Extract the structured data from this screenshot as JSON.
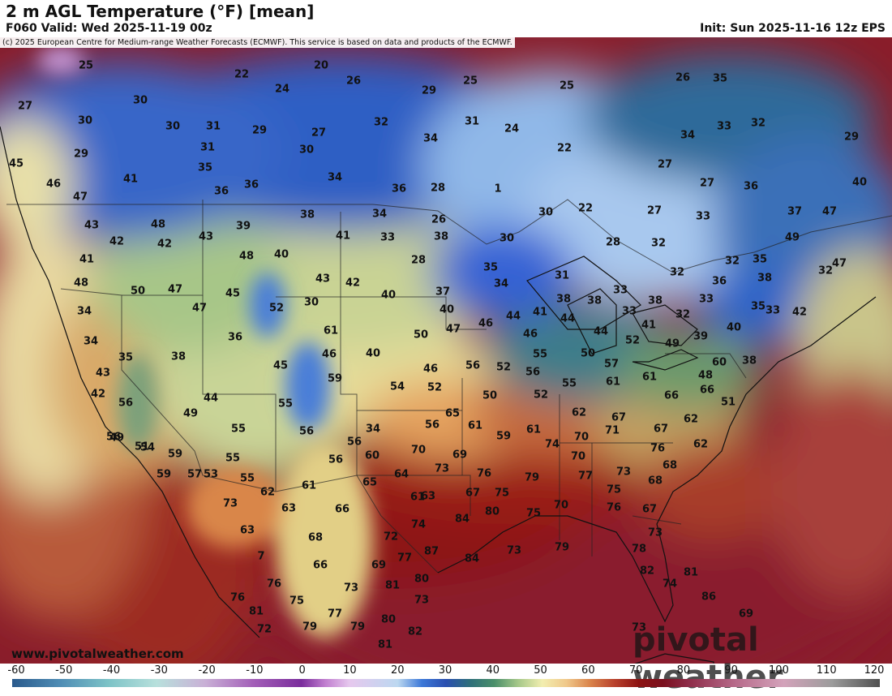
{
  "header": {
    "title": "2 m AGL Temperature (°F) [mean]",
    "valid": "F060 Valid: Wed 2025-11-19 00z",
    "init": "Init: Sun 2025-11-16 12z EPS"
  },
  "copyright": "(c) 2025 European Centre for Medium-range Weather Forecasts (ECMWF). This service is based on data and products of the ECMWF.",
  "website": "www.pivotalweather.com",
  "brand": "pivotal weather",
  "colorbar": {
    "ticks": [
      "-60",
      "-50",
      "-40",
      "-30",
      "-20",
      "-10",
      "0",
      "10",
      "20",
      "30",
      "40",
      "50",
      "60",
      "70",
      "80",
      "90",
      "100",
      "110",
      "120"
    ],
    "stops": [
      {
        "v": -60,
        "c": "#2a5a8c"
      },
      {
        "v": -50,
        "c": "#4f8db5"
      },
      {
        "v": -40,
        "c": "#7dc3c7"
      },
      {
        "v": -30,
        "c": "#b8e0dc"
      },
      {
        "v": -20,
        "c": "#c9b0d6"
      },
      {
        "v": -10,
        "c": "#a35fb8"
      },
      {
        "v": 0,
        "c": "#7a2d9c"
      },
      {
        "v": 5,
        "c": "#c17fd0"
      },
      {
        "v": 10,
        "c": "#e6c8ee"
      },
      {
        "v": 20,
        "c": "#bcd8f0"
      },
      {
        "v": 25,
        "c": "#3c78d8"
      },
      {
        "v": 30,
        "c": "#2a4fb0"
      },
      {
        "v": 35,
        "c": "#2e6f7a"
      },
      {
        "v": 40,
        "c": "#4a8f6a"
      },
      {
        "v": 45,
        "c": "#a6c889"
      },
      {
        "v": 50,
        "c": "#f2eeb0"
      },
      {
        "v": 55,
        "c": "#f0c88a"
      },
      {
        "v": 60,
        "c": "#d9824a"
      },
      {
        "v": 65,
        "c": "#b8412c"
      },
      {
        "v": 70,
        "c": "#8c1212"
      },
      {
        "v": 75,
        "c": "#7a0f1e"
      },
      {
        "v": 80,
        "c": "#8c2a46"
      },
      {
        "v": 90,
        "c": "#b76a8a"
      },
      {
        "v": 100,
        "c": "#d3a2ba"
      },
      {
        "v": 110,
        "c": "#9c9c9c"
      },
      {
        "v": 120,
        "c": "#505050"
      }
    ]
  },
  "temps": [
    {
      "t": "25"
    },
    {
      "t": "20"
    },
    {
      "t": "22"
    },
    {
      "t": "26"
    },
    {
      "t": "24"
    },
    {
      "t": "25"
    },
    {
      "t": "25"
    },
    {
      "t": "26"
    },
    {
      "t": "35"
    },
    {
      "t": "27"
    },
    {
      "t": "30"
    },
    {
      "t": "29"
    },
    {
      "t": "32"
    },
    {
      "t": "31"
    },
    {
      "t": "24"
    },
    {
      "t": "33"
    },
    {
      "t": "32"
    },
    {
      "t": "30"
    },
    {
      "t": "30"
    },
    {
      "t": "31"
    },
    {
      "t": "29"
    },
    {
      "t": "27"
    },
    {
      "t": "34"
    },
    {
      "t": "34"
    },
    {
      "t": "29"
    },
    {
      "t": "29"
    },
    {
      "t": "31"
    },
    {
      "t": "30"
    },
    {
      "t": "22"
    },
    {
      "t": "27"
    },
    {
      "t": "45"
    },
    {
      "t": "35"
    },
    {
      "t": "34"
    },
    {
      "t": "36"
    },
    {
      "t": "36"
    },
    {
      "t": "28"
    },
    {
      "t": "1"
    },
    {
      "t": "27"
    },
    {
      "t": "36"
    },
    {
      "t": "40"
    },
    {
      "t": "41"
    },
    {
      "t": "36"
    },
    {
      "t": "46"
    },
    {
      "t": "47"
    },
    {
      "t": "43"
    },
    {
      "t": "48"
    },
    {
      "t": "39"
    },
    {
      "t": "38"
    },
    {
      "t": "34"
    },
    {
      "t": "26"
    },
    {
      "t": "30"
    },
    {
      "t": "22"
    },
    {
      "t": "27"
    },
    {
      "t": "33"
    },
    {
      "t": "37"
    },
    {
      "t": "47"
    },
    {
      "t": "42"
    },
    {
      "t": "42"
    },
    {
      "t": "43"
    },
    {
      "t": "41"
    },
    {
      "t": "33"
    },
    {
      "t": "38"
    },
    {
      "t": "30"
    },
    {
      "t": "28"
    },
    {
      "t": "32"
    },
    {
      "t": "49"
    },
    {
      "t": "41"
    },
    {
      "t": "48"
    },
    {
      "t": "40"
    },
    {
      "t": "28"
    },
    {
      "t": "32"
    },
    {
      "t": "35"
    },
    {
      "t": "47"
    },
    {
      "t": "48"
    },
    {
      "t": "50"
    },
    {
      "t": "47"
    },
    {
      "t": "45"
    },
    {
      "t": "43"
    },
    {
      "t": "42"
    },
    {
      "t": "40"
    },
    {
      "t": "37"
    },
    {
      "t": "35"
    },
    {
      "t": "34"
    },
    {
      "t": "31"
    },
    {
      "t": "33"
    },
    {
      "t": "32"
    },
    {
      "t": "36"
    },
    {
      "t": "32"
    },
    {
      "t": "34"
    },
    {
      "t": "47"
    },
    {
      "t": "52"
    },
    {
      "t": "30"
    },
    {
      "t": "40"
    },
    {
      "t": "44"
    },
    {
      "t": "41"
    },
    {
      "t": "38"
    },
    {
      "t": "38"
    },
    {
      "t": "33"
    },
    {
      "t": "38"
    },
    {
      "t": "32"
    },
    {
      "t": "33"
    },
    {
      "t": "38"
    },
    {
      "t": "34"
    },
    {
      "t": "36"
    },
    {
      "t": "61"
    },
    {
      "t": "50"
    },
    {
      "t": "47"
    },
    {
      "t": "46"
    },
    {
      "t": "46"
    },
    {
      "t": "44"
    },
    {
      "t": "44"
    },
    {
      "t": "41"
    },
    {
      "t": "39"
    },
    {
      "t": "40"
    },
    {
      "t": "35"
    },
    {
      "t": "33"
    },
    {
      "t": "35"
    },
    {
      "t": "38"
    },
    {
      "t": "46"
    },
    {
      "t": "40"
    },
    {
      "t": "55"
    },
    {
      "t": "50"
    },
    {
      "t": "52"
    },
    {
      "t": "49"
    },
    {
      "t": "42"
    },
    {
      "t": "38"
    },
    {
      "t": "43"
    },
    {
      "t": "45"
    },
    {
      "t": "59"
    },
    {
      "t": "46"
    },
    {
      "t": "56"
    },
    {
      "t": "52"
    },
    {
      "t": "56"
    },
    {
      "t": "57"
    },
    {
      "t": "60"
    },
    {
      "t": "48"
    },
    {
      "t": "42"
    },
    {
      "t": "44"
    },
    {
      "t": "54"
    },
    {
      "t": "52"
    },
    {
      "t": "55"
    },
    {
      "t": "61"
    },
    {
      "t": "61"
    },
    {
      "t": "56"
    },
    {
      "t": "49"
    },
    {
      "t": "55"
    },
    {
      "t": "50"
    },
    {
      "t": "52"
    },
    {
      "t": "62"
    },
    {
      "t": "66"
    },
    {
      "t": "66"
    },
    {
      "t": "51"
    },
    {
      "t": "49"
    },
    {
      "t": "51"
    },
    {
      "t": "55"
    },
    {
      "t": "56"
    },
    {
      "t": "34"
    },
    {
      "t": "56"
    },
    {
      "t": "61"
    },
    {
      "t": "65"
    },
    {
      "t": "67"
    },
    {
      "t": "62"
    },
    {
      "t": "56"
    },
    {
      "t": "54"
    },
    {
      "t": "55"
    },
    {
      "t": "56"
    },
    {
      "t": "59"
    },
    {
      "t": "61"
    },
    {
      "t": "74"
    },
    {
      "t": "70"
    },
    {
      "t": "71"
    },
    {
      "t": "67"
    },
    {
      "t": "62"
    },
    {
      "t": "59"
    },
    {
      "t": "53"
    },
    {
      "t": "56"
    },
    {
      "t": "60"
    },
    {
      "t": "70"
    },
    {
      "t": "69"
    },
    {
      "t": "70"
    },
    {
      "t": "76"
    },
    {
      "t": "68"
    },
    {
      "t": "59"
    },
    {
      "t": "57"
    },
    {
      "t": "55"
    },
    {
      "t": "65"
    },
    {
      "t": "64"
    },
    {
      "t": "73"
    },
    {
      "t": "76"
    },
    {
      "t": "79"
    },
    {
      "t": "77"
    },
    {
      "t": "73"
    },
    {
      "t": "68"
    },
    {
      "t": "62"
    },
    {
      "t": "61"
    },
    {
      "t": "61"
    },
    {
      "t": "67"
    },
    {
      "t": "75"
    },
    {
      "t": "75"
    },
    {
      "t": "73"
    },
    {
      "t": "63"
    },
    {
      "t": "66"
    },
    {
      "t": "63"
    },
    {
      "t": "70"
    },
    {
      "t": "76"
    },
    {
      "t": "67"
    },
    {
      "t": "63"
    },
    {
      "t": "68"
    },
    {
      "t": "72"
    },
    {
      "t": "74"
    },
    {
      "t": "84"
    },
    {
      "t": "80"
    },
    {
      "t": "75"
    },
    {
      "t": "73"
    },
    {
      "t": "7"
    },
    {
      "t": "66"
    },
    {
      "t": "77"
    },
    {
      "t": "69"
    },
    {
      "t": "87"
    },
    {
      "t": "84"
    },
    {
      "t": "73"
    },
    {
      "t": "79"
    },
    {
      "t": "78"
    },
    {
      "t": "76"
    },
    {
      "t": "73"
    },
    {
      "t": "81"
    },
    {
      "t": "80"
    },
    {
      "t": "82"
    },
    {
      "t": "81"
    },
    {
      "t": "74"
    },
    {
      "t": "76"
    },
    {
      "t": "75"
    },
    {
      "t": "73"
    },
    {
      "t": "86"
    },
    {
      "t": "81"
    },
    {
      "t": "77"
    },
    {
      "t": "80"
    },
    {
      "t": "69"
    },
    {
      "t": "72"
    },
    {
      "t": "79"
    },
    {
      "t": "79"
    },
    {
      "t": "82"
    },
    {
      "t": "73"
    },
    {
      "t": "81"
    },
    {
      "t": "79"
    },
    {
      "t": "75"
    }
  ]
}
